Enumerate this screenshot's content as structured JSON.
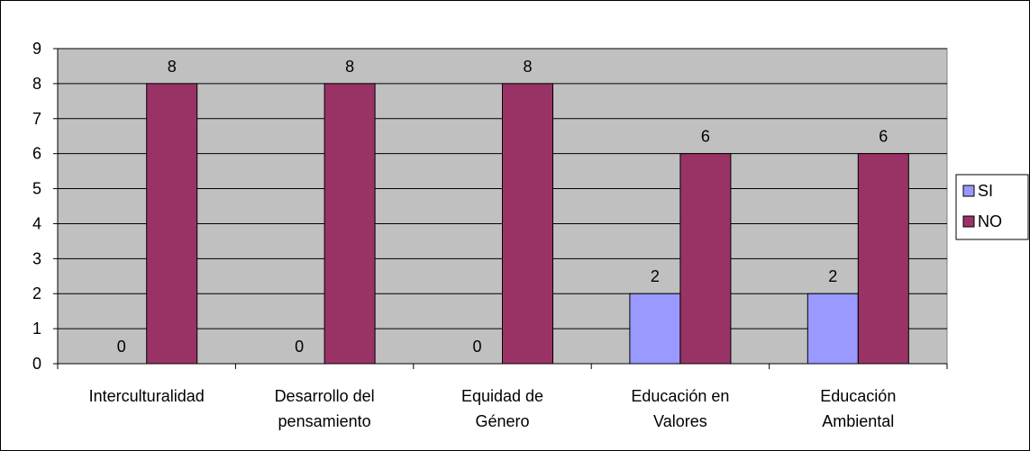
{
  "chart_data": {
    "type": "bar",
    "title": "",
    "xlabel": "",
    "ylabel": "",
    "ylim": [
      0,
      9
    ],
    "yticks": [
      "0",
      "1",
      "2",
      "3",
      "4",
      "5",
      "6",
      "7",
      "8",
      "9"
    ],
    "grid": true,
    "legend_position": "right",
    "categories": [
      [
        "Interculturalidad"
      ],
      [
        "Desarrollo del",
        "pensamiento"
      ],
      [
        "Equidad de",
        "Género"
      ],
      [
        "Educación en",
        "Valores"
      ],
      [
        "Educación",
        "Ambiental"
      ]
    ],
    "series": [
      {
        "name": "SI",
        "color": "#9999FF",
        "values": [
          0,
          0,
          0,
          2,
          2
        ]
      },
      {
        "name": "NO",
        "color": "#993366",
        "values": [
          8,
          8,
          8,
          6,
          6
        ]
      }
    ],
    "plot_background": "#C0C0C0"
  }
}
